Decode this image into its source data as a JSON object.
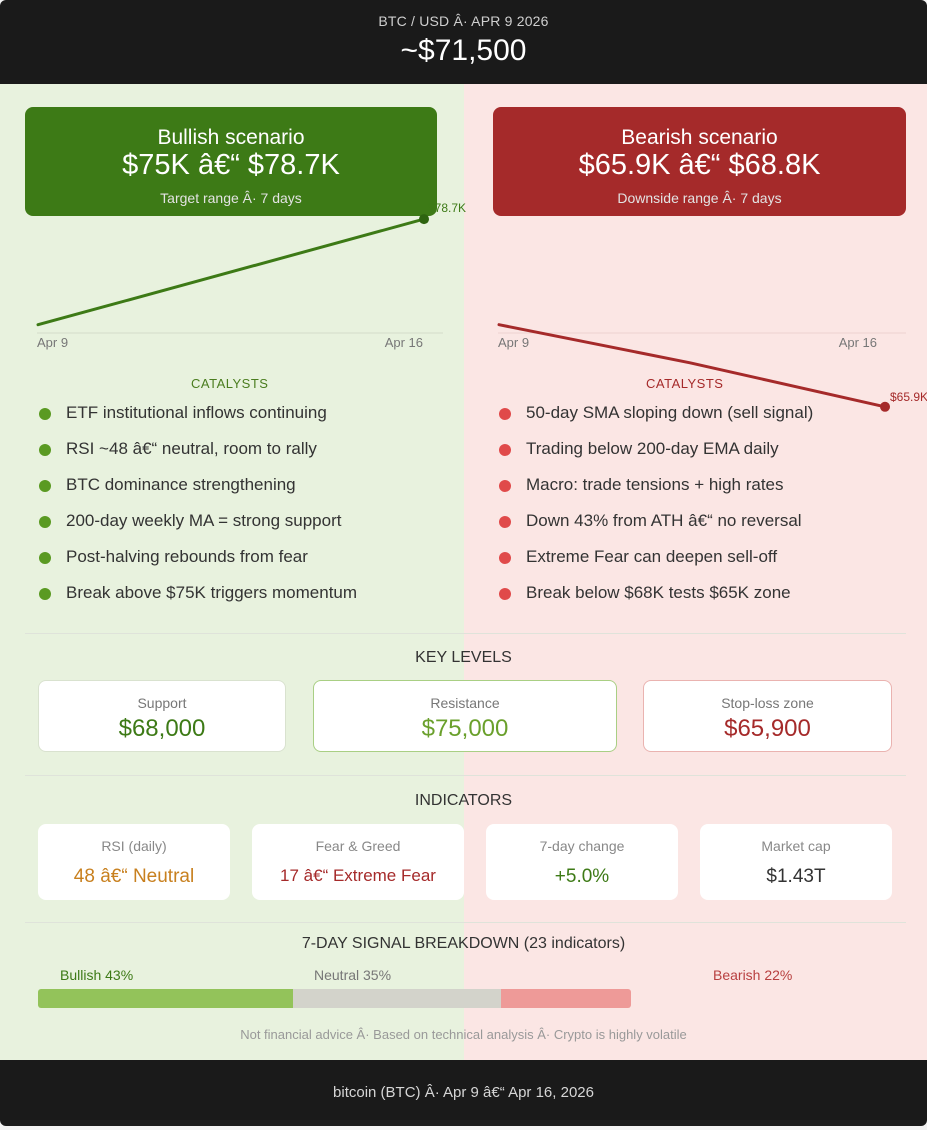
{
  "header": {
    "pair": "BTC / USD  Â·  APR 9 2026",
    "price": "~$71,500"
  },
  "colors": {
    "bull": "#3d7a16",
    "bear": "#a52a2a",
    "bull_dot": "#5a9a22",
    "bear_dot": "#e04a4a"
  },
  "bullish": {
    "title": "Bullish scenario",
    "range": "$75K â€“ $78.7K",
    "sub": "Target range Â· 7 days",
    "chart": {
      "start_label": "Apr 9",
      "end_label": "Apr 16",
      "end_value_label": "$78.7K",
      "values": [
        71500,
        72800,
        78700
      ]
    },
    "catalysts_label": "CATALYSTS",
    "catalysts": [
      "ETF institutional inflows continuing",
      "RSI ~48 â€“ neutral, room to rally",
      "BTC dominance strengthening",
      "200-day weekly MA = strong support",
      "Post-halving rebounds from fear",
      "Break above $75K triggers momentum"
    ]
  },
  "bearish": {
    "title": "Bearish scenario",
    "range": "$65.9K â€“ $68.8K",
    "sub": "Downside range Â· 7 days",
    "chart": {
      "start_label": "Apr 9",
      "end_label": "Apr 16",
      "end_value_label": "$65.9K",
      "values": [
        71500,
        68900,
        65900
      ]
    },
    "catalysts_label": "CATALYSTS",
    "catalysts": [
      "50-day SMA sloping down (sell signal)",
      "Trading below 200-day EMA daily",
      "Macro: trade tensions + high rates",
      "Down 43% from ATH â€“ no reversal",
      "Extreme Fear can deepen sell-off",
      "Break below $68K tests $65K zone"
    ]
  },
  "key_levels": {
    "title": "KEY LEVELS",
    "support": {
      "label": "Support",
      "value": "$68,000"
    },
    "resistance": {
      "label": "Resistance",
      "value": "$75,000"
    },
    "stop_loss": {
      "label": "Stop-loss zone",
      "value": "$65,900"
    }
  },
  "indicators": {
    "title": "INDICATORS",
    "rsi": {
      "label": "RSI (daily)",
      "value": "48 â€“ Neutral"
    },
    "fear_greed": {
      "label": "Fear & Greed",
      "value": "17 â€“ Extreme Fear"
    },
    "change": {
      "label": "7-day change",
      "value": "+5.0%"
    },
    "market_cap": {
      "label": "Market cap",
      "value": "$1.43T"
    }
  },
  "signal": {
    "title": "7-DAY SIGNAL BREAKDOWN  (23 indicators)",
    "bullish_label": "Bullish 43%",
    "neutral_label": "Neutral 35%",
    "bearish_label": "Bearish 22%",
    "bullish_pct": 43,
    "neutral_pct": 35,
    "bearish_pct": 22
  },
  "disclaimer": "Not financial advice Â· Based on technical analysis Â· Crypto is highly volatile",
  "footer": "bitcoin (BTC)  Â·  Apr 9 â€“ Apr 16, 2026"
}
